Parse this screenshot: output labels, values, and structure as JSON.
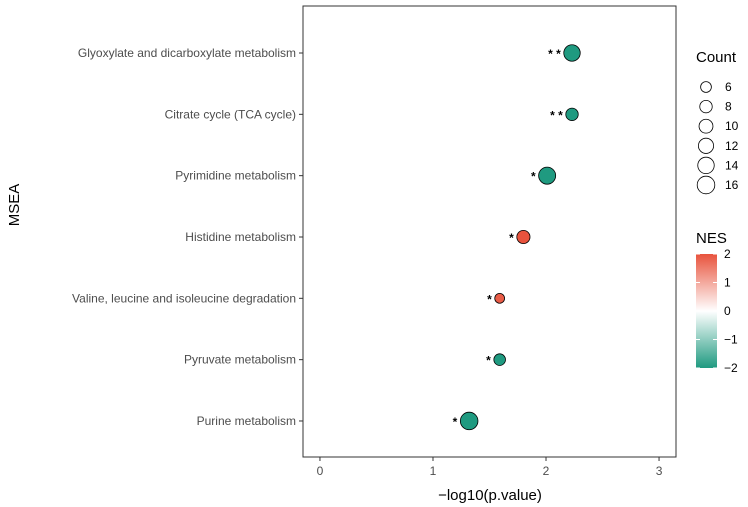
{
  "chart_data": {
    "type": "scatter",
    "title": "",
    "xlabel": "−log10(p.value)",
    "ylabel": "MSEA",
    "xlim": [
      -0.15,
      3.15
    ],
    "x_ticks": [
      "0",
      "1",
      "2",
      "3"
    ],
    "x_tick_values": [
      0,
      1,
      2,
      3
    ],
    "grid": false,
    "categories": [
      "Glyoxylate and dicarboxylate metabolism",
      "Citrate cycle (TCA cycle)",
      "Pyrimidine metabolism",
      "Histidine metabolism",
      "Valine, leucine and isoleucine degradation",
      "Pyruvate metabolism",
      "Purine metabolism"
    ],
    "points": [
      {
        "pathway": "Glyoxylate and dicarboxylate metabolism",
        "x": 2.23,
        "count": 14,
        "nes": -2.0,
        "signif": "**"
      },
      {
        "pathway": "Citrate cycle (TCA cycle)",
        "x": 2.23,
        "count": 8,
        "nes": -2.0,
        "signif": "**"
      },
      {
        "pathway": "Pyrimidine metabolism",
        "x": 2.01,
        "count": 15,
        "nes": -2.0,
        "signif": "*"
      },
      {
        "pathway": "Histidine metabolism",
        "x": 1.8,
        "count": 9,
        "nes": 2.0,
        "signif": "*"
      },
      {
        "pathway": "Valine, leucine and isoleucine degradation",
        "x": 1.59,
        "count": 5,
        "nes": 1.9,
        "signif": "*"
      },
      {
        "pathway": "Pyruvate metabolism",
        "x": 1.59,
        "count": 7,
        "nes": -2.0,
        "signif": "*"
      },
      {
        "pathway": "Purine metabolism",
        "x": 1.32,
        "count": 16,
        "nes": -2.0,
        "signif": "*"
      }
    ],
    "legend_size": {
      "title": "Count",
      "labels": [
        "6",
        "8",
        "10",
        "12",
        "14",
        "16"
      ],
      "values": [
        6,
        8,
        10,
        12,
        14,
        16
      ]
    },
    "legend_color": {
      "title": "NES",
      "labels": [
        "2",
        "1",
        "0",
        "−1",
        "−2"
      ],
      "values": [
        2,
        1,
        0,
        -1,
        -2
      ],
      "colors": {
        "high": "#e8533d",
        "mid": "#ffffff",
        "low": "#1f9a80"
      }
    },
    "legend_position": "right"
  }
}
